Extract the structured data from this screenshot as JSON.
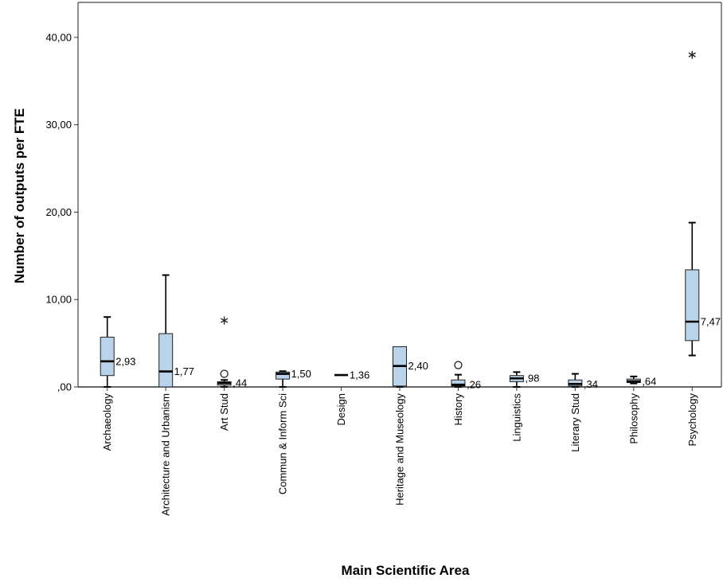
{
  "chart_data": {
    "type": "boxplot",
    "xlabel": "Main Scientific Area",
    "ylabel": "Number of outputs per FTE",
    "ylim": [
      0,
      44
    ],
    "yticks": [
      0,
      10,
      20,
      30,
      40
    ],
    "ytick_labels": [
      ",00",
      "10,00",
      "20,00",
      "30,00",
      "40,00"
    ],
    "box_color": "#b8d3ea",
    "categories": [
      "Archaeology",
      "Architecture and Urbanism",
      "Art Stud",
      "Commun & Inform Sci",
      "Design",
      "Heritage and Museology",
      "History",
      "Linguistics",
      "Literary Stud",
      "Philosophy",
      "Psychology"
    ],
    "boxes": [
      {
        "min": 0.0,
        "q1": 1.3,
        "median": 2.93,
        "q3": 5.7,
        "max": 8.0,
        "median_label": "2,93",
        "outliers": [],
        "extremes": []
      },
      {
        "min": 0.0,
        "q1": 0.0,
        "median": 1.77,
        "q3": 6.1,
        "max": 12.8,
        "median_label": "1,77",
        "outliers": [],
        "extremes": []
      },
      {
        "min": 0.0,
        "q1": 0.2,
        "median": 0.44,
        "q3": 0.6,
        "max": 0.8,
        "median_label": ",44",
        "outliers": [
          1.5
        ],
        "extremes": [
          7.6
        ]
      },
      {
        "min": 0.0,
        "q1": 0.9,
        "median": 1.5,
        "q3": 1.7,
        "max": 1.8,
        "median_label": "1,50",
        "outliers": [],
        "extremes": []
      },
      {
        "min": 1.36,
        "q1": 1.36,
        "median": 1.36,
        "q3": 1.36,
        "max": 1.36,
        "median_label": "1,36",
        "outliers": [],
        "extremes": []
      },
      {
        "min": 0.0,
        "q1": 0.1,
        "median": 2.4,
        "q3": 4.6,
        "max": 4.6,
        "median_label": "2,40",
        "outliers": [],
        "extremes": []
      },
      {
        "min": 0.0,
        "q1": 0.1,
        "median": 0.26,
        "q3": 0.8,
        "max": 1.4,
        "median_label": ",26",
        "outliers": [
          2.5
        ],
        "extremes": []
      },
      {
        "min": 0.0,
        "q1": 0.6,
        "median": 0.98,
        "q3": 1.3,
        "max": 1.7,
        "median_label": ",98",
        "outliers": [],
        "extremes": []
      },
      {
        "min": 0.0,
        "q1": 0.1,
        "median": 0.34,
        "q3": 0.8,
        "max": 1.5,
        "median_label": ",34",
        "outliers": [],
        "extremes": []
      },
      {
        "min": 0.4,
        "q1": 0.5,
        "median": 0.64,
        "q3": 0.9,
        "max": 1.2,
        "median_label": ",64",
        "outliers": [],
        "extremes": []
      },
      {
        "min": 3.6,
        "q1": 5.3,
        "median": 7.47,
        "q3": 13.4,
        "max": 18.8,
        "median_label": "7,47",
        "outliers": [],
        "extremes": [
          38.0
        ]
      }
    ]
  }
}
